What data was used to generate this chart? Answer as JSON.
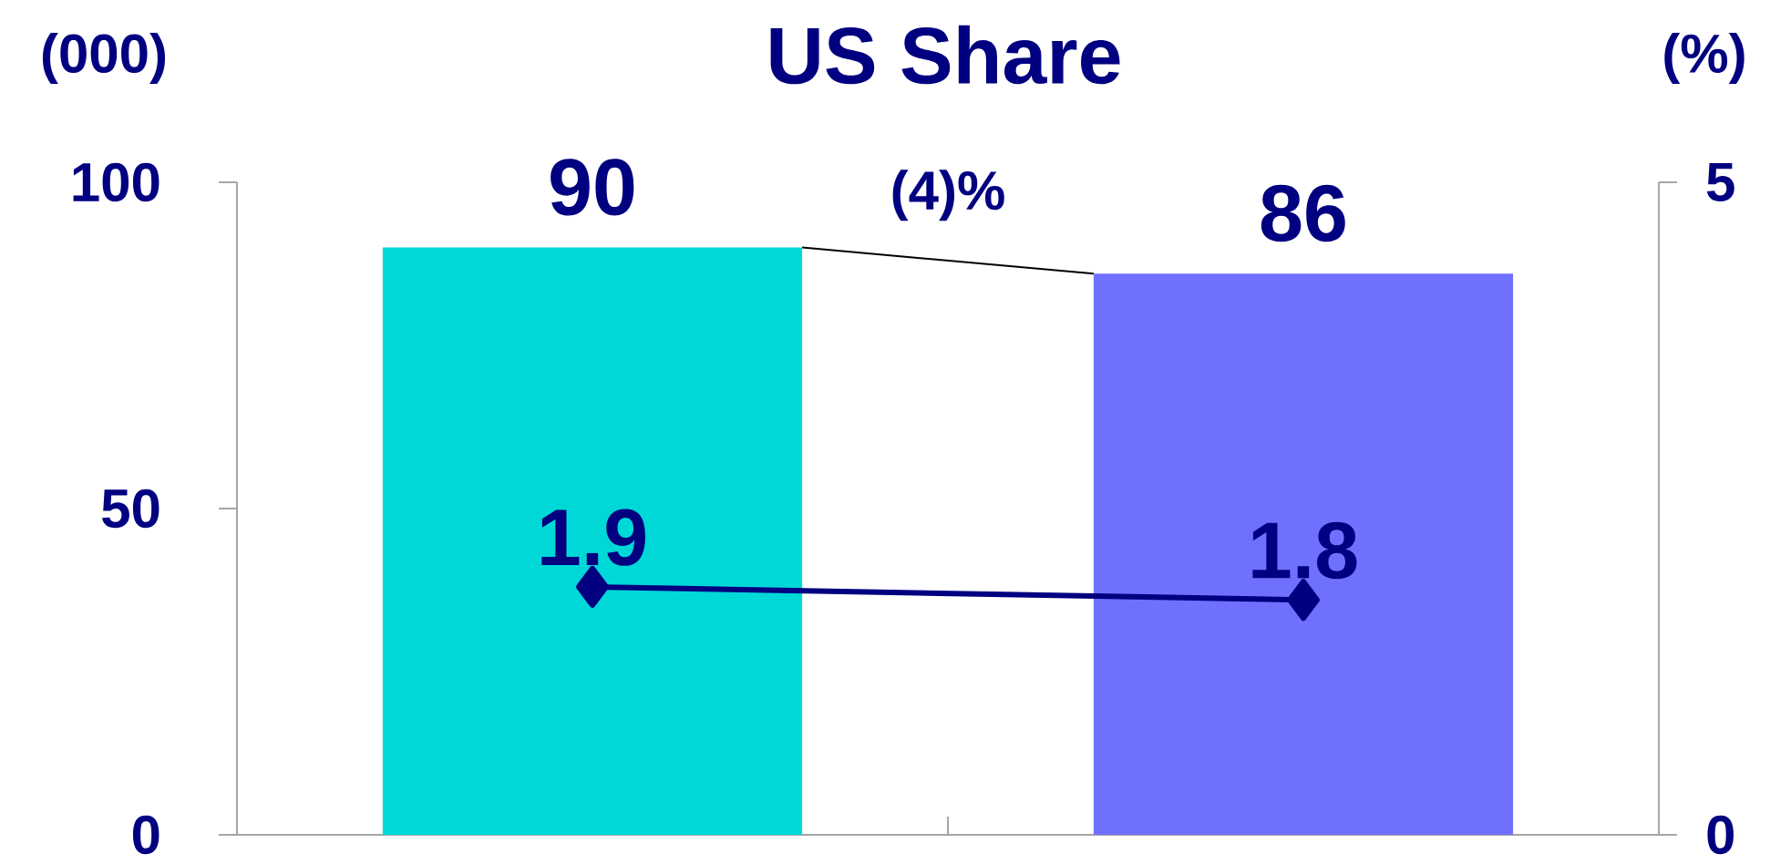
{
  "chart_data": {
    "type": "bar",
    "title": "US Share",
    "ylabel": "(000)",
    "y2label": "(%)",
    "categories": [
      null,
      null
    ],
    "series": [
      {
        "colors": [
          "#00d8d8",
          "#7070ff"
        ],
        "values": [
          90,
          86
        ]
      },
      {
        "type": "line",
        "axis": "y2",
        "color": "#000080",
        "values": [
          1.9,
          1.8
        ]
      }
    ],
    "ylim": [
      0,
      100
    ],
    "yticks": [
      0,
      50,
      100
    ],
    "y2lim": [
      0,
      5
    ],
    "y2ticks": [
      0,
      5
    ],
    "marker": "diamond",
    "line_style": "solid",
    "data_labels": true,
    "annotations": [
      "(4)%"
    ]
  }
}
